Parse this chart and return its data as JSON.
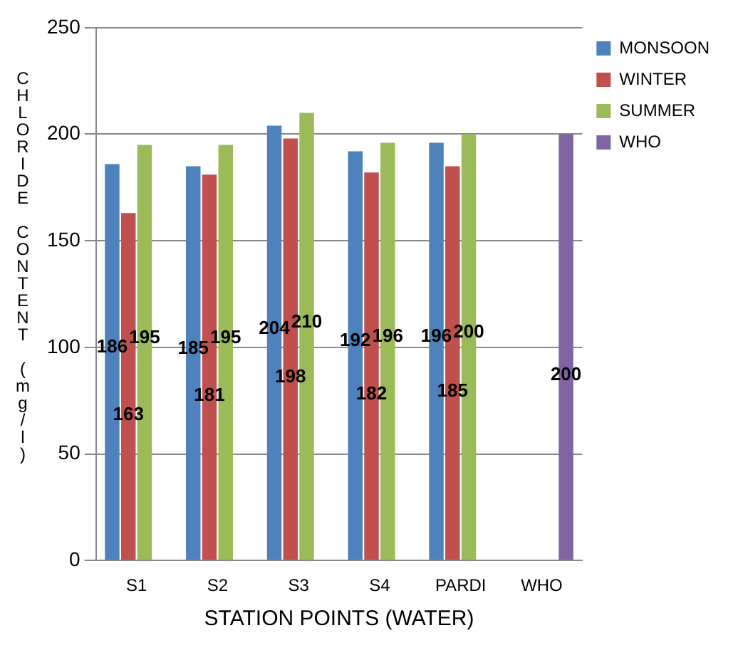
{
  "chart_data": {
    "type": "bar",
    "xlabel": "STATION POINTS (WATER)",
    "ylabel": "CHLORIDE CONTENT (mg/l)",
    "categories": [
      "S1",
      "S2",
      "S3",
      "S4",
      "PARDI",
      "WHO"
    ],
    "series": [
      {
        "name": "MONSOON",
        "color": "#4f81bd",
        "values": [
          186,
          185,
          204,
          192,
          196,
          null
        ]
      },
      {
        "name": "WINTER",
        "color": "#c0504d",
        "values": [
          163,
          181,
          198,
          182,
          185,
          null
        ]
      },
      {
        "name": "SUMMER",
        "color": "#9bbb59",
        "values": [
          195,
          195,
          210,
          196,
          200,
          null
        ]
      },
      {
        "name": "WHO",
        "color": "#8064a2",
        "values": [
          null,
          null,
          null,
          null,
          null,
          200
        ]
      }
    ],
    "ylim": [
      0,
      250
    ],
    "yticks": [
      0,
      50,
      100,
      150,
      200,
      250
    ],
    "grid": "y",
    "legend": "top right",
    "data_labels": true
  }
}
